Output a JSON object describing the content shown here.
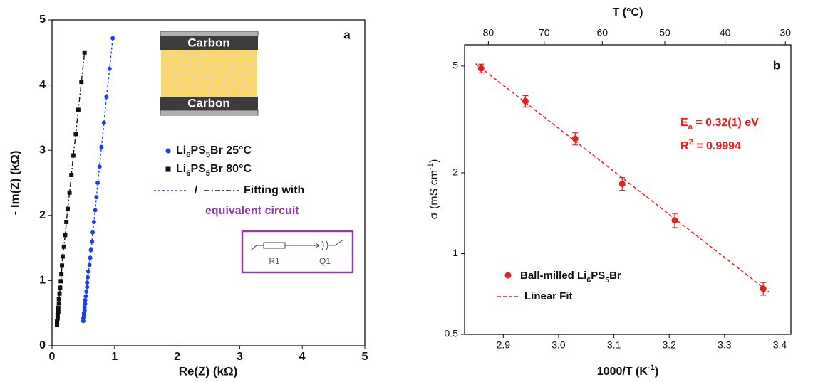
{
  "chart_data": [
    {
      "type": "scatter",
      "panel_label": "a",
      "xlabel": "Re(Z) (kΩ)",
      "ylabel": "- Im(Z) (kΩ)",
      "xlim": [
        0,
        5
      ],
      "ylim": [
        0,
        5
      ],
      "xticks": [
        0,
        1,
        2,
        3,
        4,
        5
      ],
      "yticks": [
        0,
        1,
        2,
        3,
        4,
        5
      ],
      "series": [
        {
          "name": "Li6PS5Br 25°C",
          "color": "#1a3cff",
          "marker": "circle",
          "fit_dash": "3,3",
          "x": [
            0.5,
            0.5,
            0.51,
            0.51,
            0.52,
            0.52,
            0.53,
            0.53,
            0.54,
            0.55,
            0.56,
            0.56,
            0.57,
            0.58,
            0.6,
            0.61,
            0.62,
            0.64,
            0.65,
            0.67,
            0.69,
            0.71,
            0.73,
            0.76,
            0.79,
            0.83,
            0.87,
            0.92,
            0.97
          ],
          "values": [
            0.38,
            0.42,
            0.46,
            0.5,
            0.54,
            0.59,
            0.64,
            0.7,
            0.76,
            0.83,
            0.9,
            0.97,
            1.05,
            1.14,
            1.24,
            1.35,
            1.47,
            1.6,
            1.74,
            1.9,
            2.08,
            2.28,
            2.5,
            2.75,
            3.05,
            3.42,
            3.82,
            4.25,
            4.72
          ]
        },
        {
          "name": "Li6PS5Br 80°C",
          "color": "#111111",
          "marker": "square",
          "fit_dash": "7,3,2,3",
          "x": [
            0.08,
            0.08,
            0.08,
            0.09,
            0.09,
            0.1,
            0.1,
            0.11,
            0.11,
            0.12,
            0.13,
            0.14,
            0.15,
            0.16,
            0.17,
            0.19,
            0.21,
            0.23,
            0.25,
            0.28,
            0.31,
            0.34,
            0.38,
            0.42,
            0.47,
            0.52
          ],
          "values": [
            0.32,
            0.35,
            0.38,
            0.42,
            0.47,
            0.52,
            0.58,
            0.65,
            0.72,
            0.8,
            0.89,
            0.99,
            1.1,
            1.23,
            1.37,
            1.52,
            1.7,
            1.9,
            2.1,
            2.35,
            2.62,
            2.92,
            3.25,
            3.62,
            4.05,
            4.5
          ]
        }
      ],
      "fit_legend": {
        "separator": "/",
        "text": "Fitting with",
        "subtext": "equivalent circuit"
      },
      "inset": {
        "electrode_labels": [
          "Carbon",
          "Carbon"
        ],
        "circuit_labels": [
          "R1",
          "Q1"
        ]
      }
    },
    {
      "type": "scatter",
      "panel_label": "b",
      "log_y": true,
      "xlabel": "1000/T (K-1)",
      "ylabel": "σ (mS cm-1)",
      "x2label": "T (°C)",
      "xlim": [
        2.83,
        3.42
      ],
      "ylim": [
        0.5,
        6
      ],
      "xticks": [
        2.9,
        {
          "value": 3,
          "label": "3.0"
        },
        3.1,
        3.2,
        3.3,
        3.4
      ],
      "yticks": [
        0.5,
        1,
        2,
        5
      ],
      "x2ticks": [
        {
          "value": 2.873,
          "label": "80"
        },
        {
          "value": 2.974,
          "label": "70"
        },
        {
          "value": 3.079,
          "label": "60"
        },
        {
          "value": 3.192,
          "label": "50"
        },
        {
          "value": 3.301,
          "label": "40"
        },
        {
          "value": 3.41,
          "label": "30"
        }
      ],
      "series": [
        {
          "name": "Ball-milled Li6PS5Br",
          "color": "#ee1c1c",
          "marker": "circle",
          "x": [
            2.86,
            2.94,
            3.03,
            3.115,
            3.21,
            3.37
          ],
          "values": [
            4.9,
            3.7,
            2.68,
            1.82,
            1.33,
            0.74
          ],
          "errors": [
            0.18,
            0.18,
            0.14,
            0.1,
            0.08,
            0.04
          ]
        }
      ],
      "fit": {
        "name": "Linear Fit",
        "color": "#ee1c1c",
        "x": [
          2.85,
          3.38
        ],
        "values": [
          5.1,
          0.72
        ]
      },
      "annotations": [
        "Ea = 0.32(1) eV",
        "R2 = 0.9994"
      ]
    }
  ]
}
